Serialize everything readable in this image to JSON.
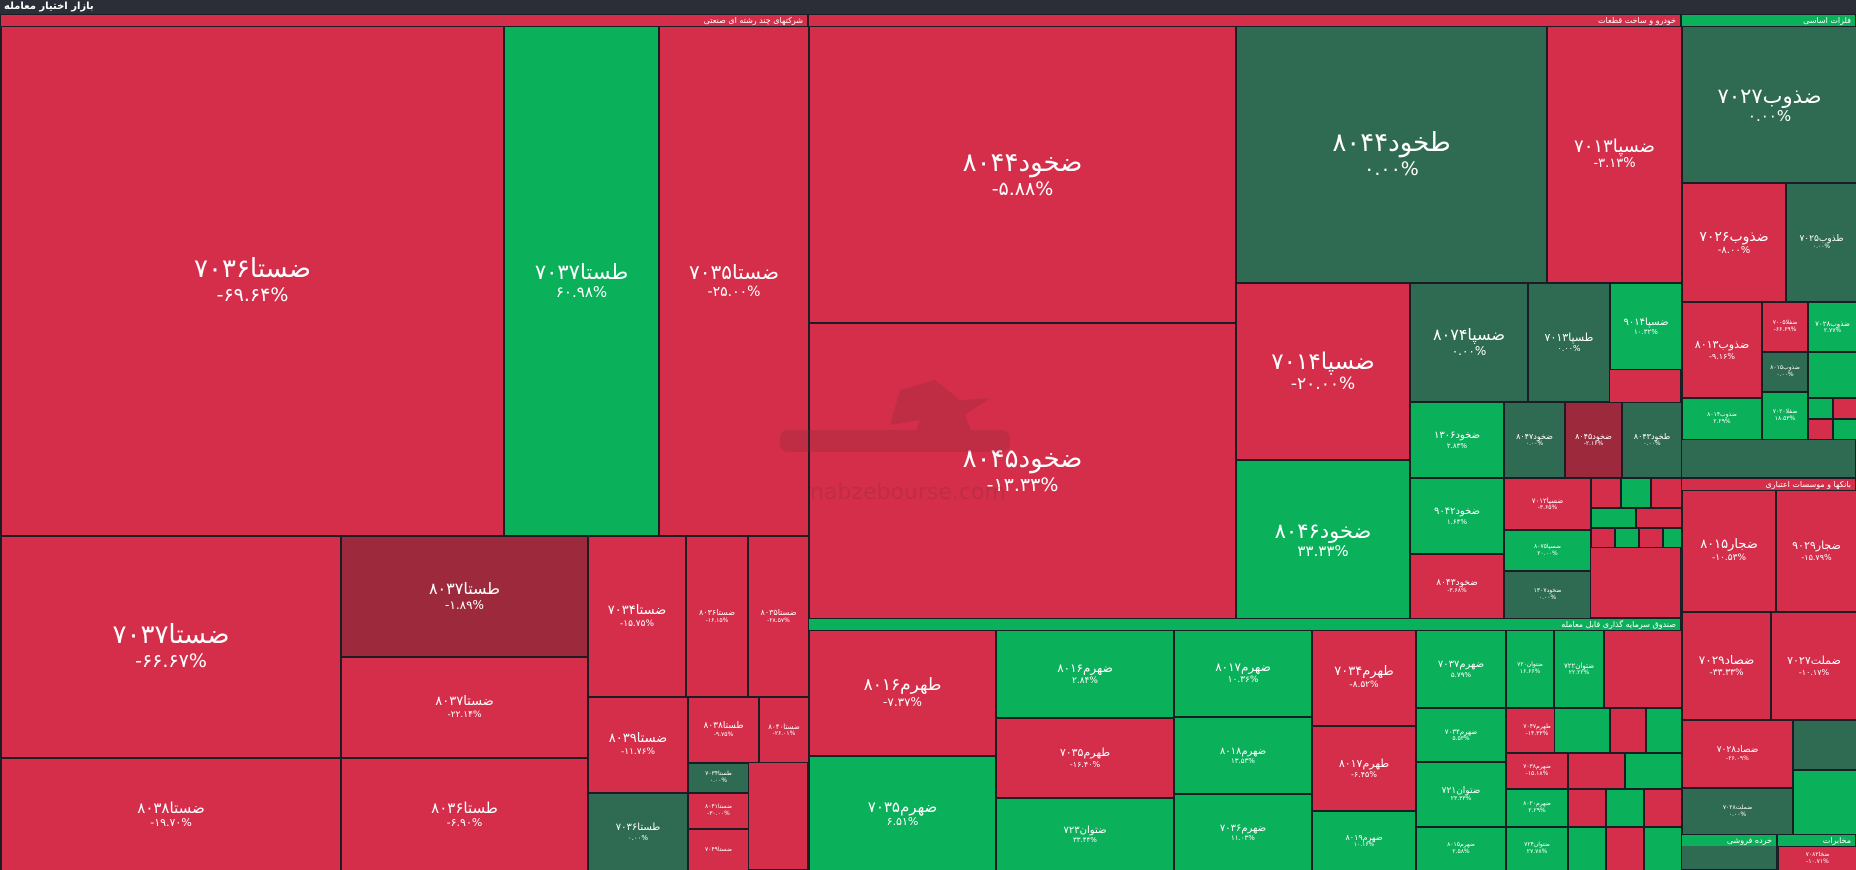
{
  "header": {
    "title": "بازار اختیار معامله"
  },
  "watermark": {
    "text": "nabzebourse.com"
  },
  "colors": {
    "red": "#d42e4b",
    "darkred": "#9c2a3c",
    "green": "#0bb05a",
    "darkgreen": "#2f6a52",
    "bg": "#1a1d24"
  },
  "chart_data": {
    "type": "treemap",
    "sections": [
      {
        "name": "شرکتهای چند رشته ای صنعتی",
        "header_color": "#d42e4b",
        "tiles": [
          {
            "symbol": "ضستا۷۰۳۶",
            "change": "-۶۹.۶۴%",
            "pct": -69.64
          },
          {
            "symbol": "طستا۷۰۳۷",
            "change": "۶۰.۹۸%",
            "pct": 60.98
          },
          {
            "symbol": "ضستا۷۰۳۵",
            "change": "-۲۵.۰۰%",
            "pct": -25.0
          },
          {
            "symbol": "ضستا۷۰۳۷",
            "change": "-۶۶.۶۷%",
            "pct": -66.67
          },
          {
            "symbol": "طستا۸۰۳۷",
            "change": "-۱.۸۹%",
            "pct": -1.89
          },
          {
            "symbol": "ضستا۸۰۳۷",
            "change": "-۲۲.۱۴%",
            "pct": -22.14
          },
          {
            "symbol": "ضستا۸۰۳۸",
            "change": "-۱۹.۷۰%",
            "pct": -19.7
          },
          {
            "symbol": "طستا۸۰۳۶",
            "change": "-۶.۹۰%",
            "pct": -6.9
          },
          {
            "symbol": "ضستا۷۰۳۴",
            "change": "-۱۵.۷۵%",
            "pct": -15.75
          },
          {
            "symbol": "ضستا۸۰۳۶",
            "change": "-۱۶.۱۵%",
            "pct": -16.15
          },
          {
            "symbol": "ضستا۸۰۳۵",
            "change": "-۲۸.۵۷%",
            "pct": -28.57
          },
          {
            "symbol": "ضستا۸۰۳۹",
            "change": "-۱۱.۷۶%",
            "pct": -11.76
          },
          {
            "symbol": "طستا۸۰۳۸",
            "change": "-۹.۷۵%",
            "pct": -9.75
          },
          {
            "symbol": "ضستا۸۰۴۰",
            "change": "-۲۶.۰۱%",
            "pct": -26.01
          },
          {
            "symbol": "طستا۷۰۳۶",
            "change": "۰.۰۰%",
            "pct": 0
          },
          {
            "symbol": "طستا۷۰۳۴",
            "change": "۰.۰۰%",
            "pct": 0
          },
          {
            "symbol": "ضستا۸۰۴۱",
            "change": "-۳۰.۰۰%",
            "pct": -30.0
          },
          {
            "symbol": "ضستا۷۰۴۹",
            "change": "",
            "pct": -10.0
          }
        ]
      },
      {
        "name": "خودرو و ساخت قطعات",
        "header_color": "#d42e4b",
        "tiles": [
          {
            "symbol": "ضخود۸۰۴۴",
            "change": "-۵.۸۸%",
            "pct": -5.88
          },
          {
            "symbol": "ضخود۸۰۴۵",
            "change": "-۱۳.۳۳%",
            "pct": -13.33
          },
          {
            "symbol": "طخود۸۰۴۴",
            "change": "۰.۰۰%",
            "pct": 0
          },
          {
            "symbol": "ضسپا۷۰۱۳",
            "change": "-۳.۱۳%",
            "pct": -3.13
          },
          {
            "symbol": "ضسپا۷۰۱۴",
            "change": "-۲۰.۰۰%",
            "pct": -20.0
          },
          {
            "symbol": "ضسپا۸۰۷۴",
            "change": "۰.۰۰%",
            "pct": 0
          },
          {
            "symbol": "طسپا۷۰۱۳",
            "change": "۰.۰۰%",
            "pct": 0
          },
          {
            "symbol": "ضسپا۹۰۱۴",
            "change": "۱۰.۳۲%",
            "pct": 10.32
          },
          {
            "symbol": "ضخود۸۰۴۶",
            "change": "۳۳.۳۳%",
            "pct": 33.33
          },
          {
            "symbol": "ضخود۱۳۰۶",
            "change": "۲.۸۳%",
            "pct": 2.83
          },
          {
            "symbol": "ضخود۸۰۴۷",
            "change": "۰.۰۰%",
            "pct": 0
          },
          {
            "symbol": "ضخود۸۰۴۵",
            "change": "-۲.۱۶%",
            "pct": -2.16
          },
          {
            "symbol": "طخود۸۰۴۳",
            "change": "۰.۰۰%",
            "pct": 0
          },
          {
            "symbol": "ضخود۹۰۴۲",
            "change": "۱.۶۴%",
            "pct": 1.64
          },
          {
            "symbol": "ضسپا۷۰۱۲",
            "change": "-۳.۶۵%",
            "pct": -3.65
          },
          {
            "symbol": "ضسپا۸۰۷۵",
            "change": "۲۰.۰۰%",
            "pct": 20.0
          },
          {
            "symbol": "ضخود۸۰۴۳",
            "change": "-۳.۶۸%",
            "pct": -3.68
          },
          {
            "symbol": "ضخود۱۳۰۷",
            "change": "۰.۰۰%",
            "pct": 0
          }
        ]
      },
      {
        "name": "فلزات اساسی",
        "header_color": "#0bb05a",
        "tiles": [
          {
            "symbol": "ضذوب۷۰۲۷",
            "change": "۰.۰۰%",
            "pct": 0
          },
          {
            "symbol": "ضذوب۷۰۲۶",
            "change": "-۸.۰۰%",
            "pct": -8.0
          },
          {
            "symbol": "طذوب۷۰۲۵",
            "change": "۰.۰۰%",
            "pct": 0
          },
          {
            "symbol": "ضذوب۸۰۱۳",
            "change": "-۹.۱۶%",
            "pct": -9.16
          },
          {
            "symbol": "ضفلا۷۰۰۵",
            "change": "-۶۶.۶۹%",
            "pct": -66.69
          },
          {
            "symbol": "ضذوب۷۰۲۸",
            "change": "۲.۷۷%",
            "pct": 2.77
          },
          {
            "symbol": "ضذوب۸۰۱۴",
            "change": "۲.۲۹%",
            "pct": 2.29
          },
          {
            "symbol": "ضذوب۸۰۱۵",
            "change": "۰.۰۰%",
            "pct": 0
          },
          {
            "symbol": "ضفلا۷۰۲۰",
            "change": "۱۸.۵۳%",
            "pct": 18.53
          }
        ]
      },
      {
        "name": "بانکها و موسسات اعتباری",
        "header_color": "#d42e4b",
        "tiles": [
          {
            "symbol": "ضجار۸۰۱۵",
            "change": "-۱۰.۵۳%",
            "pct": -10.53
          },
          {
            "symbol": "ضجار۹۰۲۹",
            "change": "-۱۵.۷۹%",
            "pct": -15.79
          },
          {
            "symbol": "ضصاد۷۰۲۹",
            "change": "-۳۳.۳۳%",
            "pct": -33.33
          },
          {
            "symbol": "ضملت۷۰۲۷",
            "change": "-۱۰.۱۷%",
            "pct": -10.17
          },
          {
            "symbol": "ضصاد۷۰۲۸",
            "change": "-۲۶.۰۹%",
            "pct": -26.09
          },
          {
            "symbol": "ضملت۷۰۲۸",
            "change": "۰.۰۰%",
            "pct": 0
          }
        ]
      },
      {
        "name": "صندوق سرمایه گذاری قابل معامله",
        "header_color": "#0bb05a",
        "tiles": [
          {
            "symbol": "طهرم۸۰۱۶",
            "change": "-۷.۳۷%",
            "pct": -7.37
          },
          {
            "symbol": "ضهرم۸۰۱۶",
            "change": "۲.۸۴%",
            "pct": 2.84
          },
          {
            "symbol": "ضهرم۷۰۳۵",
            "change": "۶.۵۱%",
            "pct": 6.51
          },
          {
            "symbol": "طهرم۷۰۳۵",
            "change": "-۱۶.۴۰%",
            "pct": -16.4
          },
          {
            "symbol": "ضتوان۷۲۳",
            "change": "۳۳.۴۴%",
            "pct": 33.44
          },
          {
            "symbol": "ضهرم۸۰۱۷",
            "change": "۱۰.۳۶%",
            "pct": 10.36
          },
          {
            "symbol": "ضهرم۸۰۱۸",
            "change": "۱۳.۵۳%",
            "pct": 13.53
          },
          {
            "symbol": "ضهرم۷۰۳۶",
            "change": "۱۱.۰۳%",
            "pct": 11.03
          },
          {
            "symbol": "طهرم۷۰۳۴",
            "change": "-۸.۵۲%",
            "pct": -8.52
          },
          {
            "symbol": "طهرم۸۰۱۷",
            "change": "-۶.۴۵%",
            "pct": -6.45
          },
          {
            "symbol": "ضهرم۸۰۱۹",
            "change": "۱۰.۱۶%",
            "pct": 10.16
          },
          {
            "symbol": "ضهرم۷۰۳۷",
            "change": "۵.۷۹%",
            "pct": 5.79
          },
          {
            "symbol": "ضهرم۷۰۳۴",
            "change": "۵.۵۳%",
            "pct": 5.53
          },
          {
            "symbol": "ضتوان۷۲۱",
            "change": "۲۳.۳۳%",
            "pct": 23.33
          },
          {
            "symbol": "ضهرم۸۰۱۵",
            "change": "۲.۵۸%",
            "pct": 2.58
          },
          {
            "symbol": "ضتوان۷۲۰",
            "change": "۱۶.۶۶%",
            "pct": 16.66
          },
          {
            "symbol": "ضتوان۷۲۲",
            "change": "۲۲.۲۲%",
            "pct": 22.22
          },
          {
            "symbol": "طهرم۷۰۴۷",
            "change": "-۱۴.۳۳%",
            "pct": -14.33
          },
          {
            "symbol": "ضهرم۷۰۳۸",
            "change": "-۱۵.۱۸%",
            "pct": -15.18
          },
          {
            "symbol": "ضهرم۸۰۲۰",
            "change": "۲.۲۹%",
            "pct": 2.29
          },
          {
            "symbol": "ضتوان۷۲۴",
            "change": "۲۷.۷۸%",
            "pct": 27.78
          }
        ]
      },
      {
        "name": "خرده فروشی",
        "header_color": "#0bb05a",
        "tiles": []
      },
      {
        "name": "مخابرات",
        "header_color": "#0bb05a",
        "tiles": [
          {
            "symbol": "ضخا۷۰۸۲",
            "change": "-۱۰.۷۱%",
            "pct": -10.71
          }
        ]
      }
    ]
  }
}
